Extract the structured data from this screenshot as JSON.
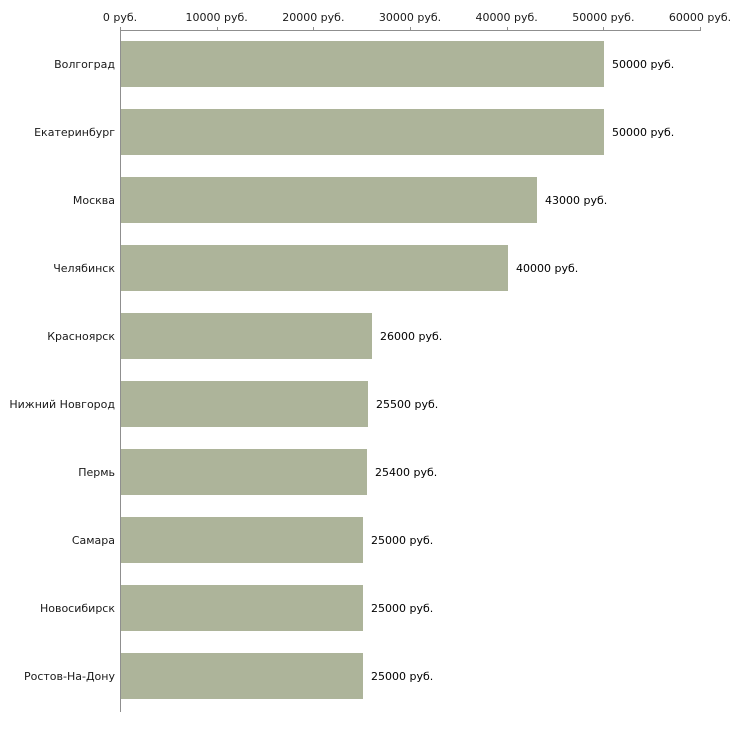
{
  "chart_data": {
    "type": "bar",
    "orientation": "horizontal",
    "title": "",
    "xlabel": "",
    "ylabel": "",
    "categories": [
      "Волгоград",
      "Екатеринбург",
      "Москва",
      "Челябинск",
      "Красноярск",
      "Нижний Новгород",
      "Пермь",
      "Самара",
      "Новосибирск",
      "Ростов-На-Дону"
    ],
    "values": [
      50000,
      50000,
      43000,
      40000,
      26000,
      25500,
      25400,
      25000,
      25000,
      25000
    ],
    "value_labels": [
      "50000 руб.",
      "50000 руб.",
      "43000 руб.",
      "40000 руб.",
      "26000 руб.",
      "25500 руб.",
      "25400 руб.",
      "25000 руб.",
      "25000 руб.",
      "25000 руб."
    ],
    "x_axis": {
      "position": "top",
      "min": 0,
      "max": 60000,
      "ticks": [
        0,
        10000,
        20000,
        30000,
        40000,
        50000,
        60000
      ],
      "tick_labels": [
        "0 руб.",
        "10000 руб.",
        "20000 руб.",
        "30000 руб.",
        "40000 руб.",
        "50000 руб.",
        "60000 руб."
      ]
    },
    "grid": false,
    "legend": false,
    "colors": {
      "bar_fill": "#adb49a",
      "axis_line": "#8f8f8f",
      "text": "#1a1a1a",
      "background": "#ffffff"
    }
  }
}
